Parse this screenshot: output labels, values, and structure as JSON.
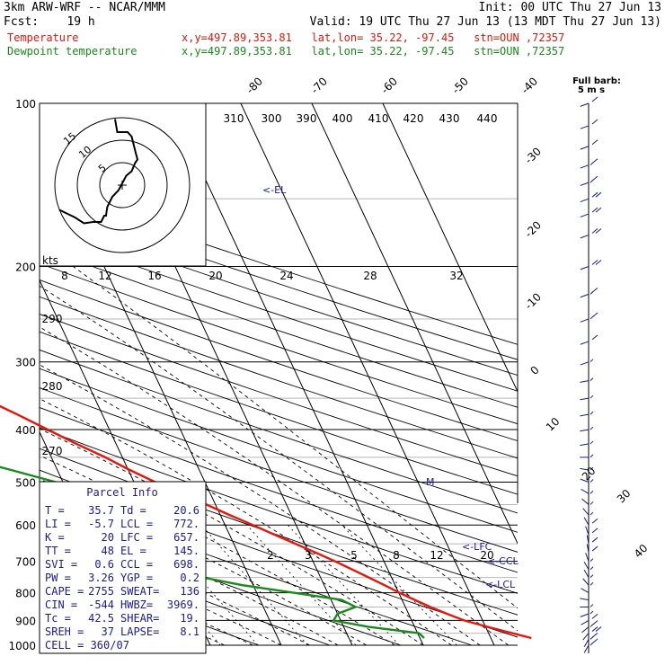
{
  "header": {
    "model": "3km ARW-WRF -- NCAR/MMM",
    "init": "Init: 00 UTC Thu 27 Jun 13",
    "fcst": "Fcst:    19 h",
    "valid": "Valid: 19 UTC Thu 27 Jun 13 (13 MDT Thu 27 Jun 13)",
    "temp_label": "Temperature",
    "temp_info": "x,y=497.89,353.81   lat,lon= 35.22, -97.45   stn=OUN ,72357",
    "dew_label": "Dewpoint temperature",
    "dew_info": "x,y=497.89,353.81   lat,lon= 35.22, -97.45   stn=OUN ,72357"
  },
  "colors": {
    "temperature": "#e8160c",
    "dewpoint": "#1a8a1a",
    "table_text": "#1a1aa0",
    "wind": "#1a1aa0",
    "annotation": "#1a1aa0"
  },
  "barb_legend": {
    "line1": "Full barb:",
    "line2": "5 m s"
  },
  "chart_data": {
    "type": "line",
    "title": "",
    "xlabel": "",
    "ylabel": "",
    "pressure_ticks": [
      100,
      200,
      300,
      400,
      500,
      600,
      700,
      800,
      900,
      1000
    ],
    "pressure_range": [
      100,
      1000
    ],
    "pressure_axis": "log",
    "isotherm_labels": [
      -80,
      -70,
      -60,
      -50,
      -40,
      -30,
      -20,
      -10,
      0,
      10,
      20,
      30,
      40
    ],
    "theta_labels": [
      310,
      300,
      390,
      400,
      410,
      420,
      430,
      440
    ],
    "dry_adiabat_labels": [
      290,
      280,
      270
    ],
    "mixing_ratio_labels": [
      2,
      3,
      5,
      8,
      12,
      20
    ],
    "hodograph_speed_labels": [
      8,
      12,
      16,
      20,
      24,
      28,
      32
    ],
    "hodograph_unit": "kts",
    "hodograph_ring_labels": [
      15,
      10,
      5
    ],
    "series": [
      {
        "name": "Temperature",
        "color": "#e8160c",
        "pressure": [
          970,
          950,
          925,
          900,
          875,
          850,
          825,
          800,
          775,
          750,
          725,
          700,
          675,
          650,
          625,
          600,
          575,
          550,
          525,
          500,
          475,
          450,
          425,
          400,
          375,
          350,
          325,
          300,
          275,
          250,
          225,
          200,
          175,
          150,
          140,
          130,
          125,
          115,
          105,
          100
        ],
        "values": [
          35.7,
          33.3,
          30.3,
          27.4,
          25.4,
          23.5,
          21.8,
          20.1,
          18.5,
          16.8,
          15.0,
          13.1,
          11.0,
          8.7,
          6.3,
          3.9,
          1.3,
          -1.3,
          -4.0,
          -7.0,
          -9.8,
          -12.4,
          -15.6,
          -18.7,
          -22.0,
          -25.7,
          -29.6,
          -33.8,
          -38.3,
          -43.2,
          -48.6,
          -53.9,
          -59.3,
          -62.0,
          -60.5,
          -58.0,
          -57.0,
          -55.5,
          -54.5,
          -53.5
        ]
      },
      {
        "name": "Dewpoint temperature",
        "color": "#1a8a1a",
        "pressure": [
          970,
          950,
          925,
          900,
          875,
          850,
          825,
          800,
          775,
          750,
          725,
          700,
          675,
          650,
          625,
          600,
          575,
          550,
          525,
          500,
          475,
          450,
          425,
          400,
          375,
          350,
          325,
          300,
          275,
          250,
          225,
          200,
          175,
          150,
          140,
          130,
          120,
          110,
          100
        ],
        "values": [
          20.6,
          20.2,
          13.5,
          9.0,
          10.0,
          13.0,
          11.5,
          5.2,
          -1.5,
          -6.5,
          -7.5,
          -8.0,
          -7.2,
          -4.2,
          -5.8,
          -9.0,
          -10.2,
          -13.0,
          -17.0,
          -21.0,
          -26.5,
          -32.5,
          -33.0,
          -36.0,
          -35.5,
          -32.5,
          -35.5,
          -42.5,
          -46.0,
          -50.0,
          -54.5,
          -59.5,
          -65.0,
          -70.5,
          -71.5,
          -70.5,
          -74.5,
          -78.5,
          -80.0
        ]
      }
    ],
    "levels": {
      "EL": {
        "label": "<-EL",
        "pressure": 145
      },
      "LFC": {
        "label": "<-LFC",
        "pressure": 657
      },
      "CCL": {
        "label": "<-CCL",
        "pressure": 698
      },
      "LCL": {
        "label": "<-LCL",
        "pressure": 772
      },
      "M": {
        "label": "M",
        "pressure": 485
      }
    },
    "hodograph": {
      "u": [
        -14.0,
        -10.5,
        -8.5,
        -6.5,
        -4.7,
        -4.0,
        -3.6,
        -3.5,
        -3.3,
        -2.2,
        -0.8,
        0.9,
        2.1,
        2.9,
        3.4,
        3.0,
        2.1,
        1.2,
        -1.1,
        -1.6
      ],
      "v": [
        -5.5,
        -7.2,
        -8.5,
        -8.2,
        -8.2,
        -6.8,
        -6.8,
        -6.0,
        -4.8,
        -2.6,
        -1.1,
        2.1,
        3.1,
        5.0,
        5.7,
        7.2,
        10.8,
        11.8,
        11.8,
        14.7
      ]
    },
    "wind_profile": {
      "pressure": [
        1000,
        975,
        950,
        925,
        900,
        875,
        850,
        825,
        800,
        775,
        750,
        725,
        700,
        675,
        650,
        625,
        600,
        575,
        550,
        525,
        500,
        475,
        450,
        425,
        400,
        375,
        350,
        325,
        300,
        275,
        250,
        225,
        200,
        175,
        160,
        150,
        140,
        130,
        120,
        110,
        100
      ],
      "speed": [
        8,
        9,
        10,
        9,
        6,
        3,
        3,
        2,
        2,
        3,
        3,
        4,
        4,
        5,
        5,
        5,
        5,
        4,
        4,
        3,
        3,
        3,
        3,
        3,
        3,
        3,
        3,
        3,
        4,
        6,
        8,
        9,
        10,
        11,
        11,
        10,
        9,
        8,
        7,
        6,
        5
      ],
      "direction": [
        210,
        210,
        220,
        230,
        240,
        250,
        270,
        280,
        300,
        320,
        330,
        330,
        340,
        350,
        350,
        340,
        330,
        320,
        310,
        300,
        290,
        280,
        270,
        260,
        260,
        260,
        260,
        260,
        250,
        250,
        250,
        250,
        250,
        250,
        250,
        250,
        250,
        250,
        250,
        250,
        250
      ]
    }
  },
  "parcel_info": {
    "title": "Parcel Info",
    "rows": [
      {
        "k1": "T   =",
        "v1": "35.7",
        "k2": "Td =",
        "v2": "20.6"
      },
      {
        "k1": "LI  =",
        "v1": "-5.7",
        "k2": "LCL =",
        "v2": "772."
      },
      {
        "k1": "K   =",
        "v1": "20",
        "k2": "LFC =",
        "v2": "657."
      },
      {
        "k1": "TT  =",
        "v1": "48",
        "k2": "EL  =",
        "v2": "145."
      },
      {
        "k1": "SVI =",
        "v1": "0.6",
        "k2": "CCL =",
        "v2": "698."
      },
      {
        "k1": "PW  =",
        "v1": "3.26",
        "k2": "YGP =",
        "v2": "0.2"
      },
      {
        "k1": "CAPE =",
        "v1": "2755",
        "k2": "SWEAT=",
        "v2": "136"
      },
      {
        "k1": "CIN  =",
        "v1": "-544",
        "k2": "HWBZ=",
        "v2": "3969."
      },
      {
        "k1": "Tc  =",
        "v1": "42.5",
        "k2": "SHEAR=",
        "v2": "19."
      },
      {
        "k1": "SREH =",
        "v1": "37",
        "k2": "LAPSE=",
        "v2": "8.1"
      }
    ],
    "cell": "CELL = 360/07"
  }
}
